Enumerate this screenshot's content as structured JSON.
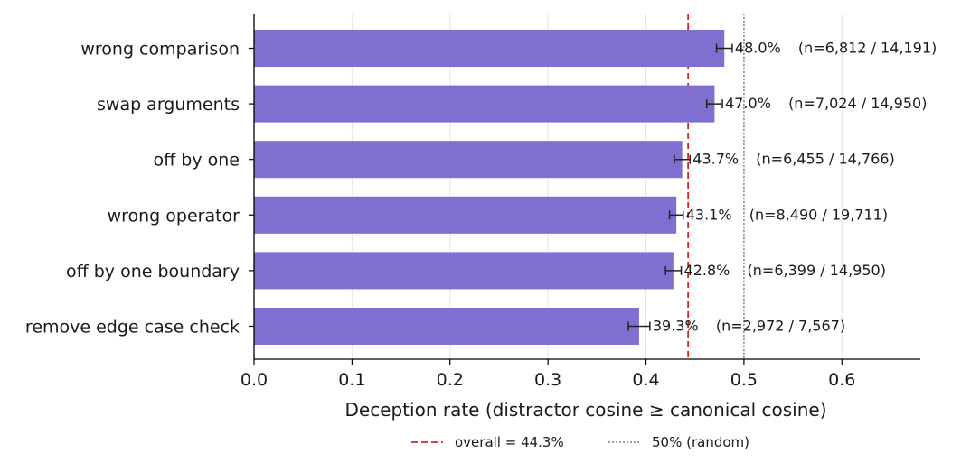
{
  "chart_data": {
    "type": "bar",
    "orientation": "horizontal",
    "title": "",
    "xlabel": "Deception rate (distractor cosine ≥ canonical cosine)",
    "ylabel": "",
    "xlim": [
      0,
      0.68
    ],
    "xticks": [
      "0.0",
      "0.1",
      "0.2",
      "0.3",
      "0.4",
      "0.5",
      "0.6"
    ],
    "grid": "vertical",
    "bar_color": "#7e6fd0",
    "categories": [
      "wrong comparison",
      "swap arguments",
      "off by one",
      "wrong operator",
      "off by one boundary",
      "remove edge case check"
    ],
    "values": [
      0.48,
      0.47,
      0.437,
      0.431,
      0.428,
      0.393
    ],
    "error": [
      0.008,
      0.008,
      0.008,
      0.007,
      0.008,
      0.011
    ],
    "value_labels": [
      "48.0%",
      "47.0%",
      "43.7%",
      "43.1%",
      "42.8%",
      "39.3%"
    ],
    "count_labels": [
      "(n=6,812 / 14,191)",
      "(n=7,024 / 14,950)",
      "(n=6,455 / 14,766)",
      "(n=8,490 / 19,711)",
      "(n=6,399 / 14,950)",
      "(n=2,972 / 7,567)"
    ],
    "reference_lines": [
      {
        "value": 0.443,
        "label": "overall = 44.3%",
        "style": "dashed",
        "color": "#d62728"
      },
      {
        "value": 0.5,
        "label": "50% (random)",
        "style": "dotted",
        "color": "#808080"
      }
    ],
    "legend_position": "bottom-center"
  }
}
